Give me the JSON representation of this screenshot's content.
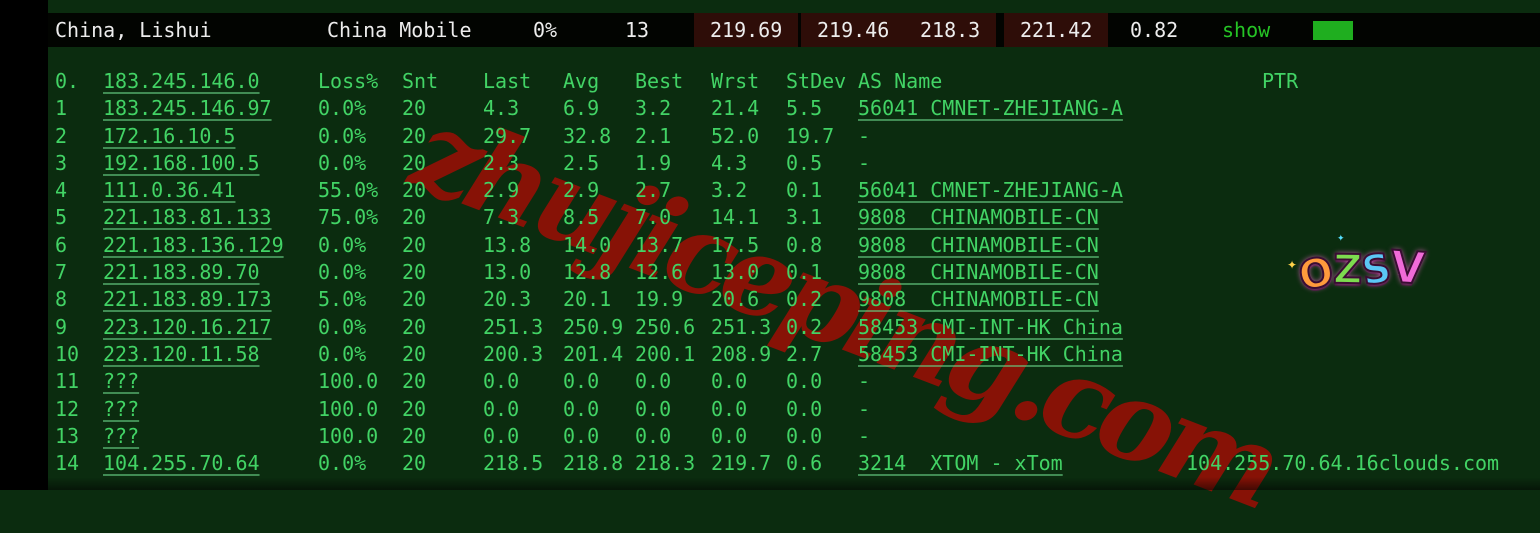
{
  "colors": {
    "background": "#0b2c0f",
    "gutter_black": "#000000",
    "bar_background": "#020401",
    "bar_text": "#ededed",
    "hot_cell_background": "#2e0d08",
    "text_green": "#42d365",
    "show_green": "#25c425",
    "button_green": "#1fae1f",
    "watermark_red": "#8e1407"
  },
  "summary_bar": {
    "location": "China, Lishui",
    "provider": "China Mobile",
    "loss": "0%",
    "count": "13",
    "values": [
      "219.69",
      "219.46",
      "218.3",
      "221.42",
      "0.82"
    ],
    "show_label": "show"
  },
  "table": {
    "header": {
      "hop": "0.",
      "ip": "183.245.146.0",
      "loss": "Loss%",
      "snt": "Snt",
      "last": "Last",
      "avg": "Avg",
      "best": "Best",
      "wrst": "Wrst",
      "stdev": "StDev",
      "asname": "AS Name",
      "ptr": "PTR"
    },
    "rows": [
      {
        "hop": "1",
        "ip": "183.245.146.97",
        "loss": "0.0%",
        "snt": "20",
        "last": "4.3",
        "avg": "6.9",
        "best": "3.2",
        "wrst": "21.4",
        "stdev": "5.5",
        "asname": "56041 CMNET-ZHEJIANG-A",
        "ptr": ""
      },
      {
        "hop": "2",
        "ip": "172.16.10.5",
        "loss": "0.0%",
        "snt": "20",
        "last": "29.7",
        "avg": "32.8",
        "best": "2.1",
        "wrst": "52.0",
        "stdev": "19.7",
        "asname": "-",
        "ptr": ""
      },
      {
        "hop": "3",
        "ip": "192.168.100.5",
        "loss": "0.0%",
        "snt": "20",
        "last": "2.3",
        "avg": "2.5",
        "best": "1.9",
        "wrst": "4.3",
        "stdev": "0.5",
        "asname": "-",
        "ptr": ""
      },
      {
        "hop": "4",
        "ip": "111.0.36.41",
        "loss": "55.0%",
        "snt": "20",
        "last": "2.9",
        "avg": "2.9",
        "best": "2.7",
        "wrst": "3.2",
        "stdev": "0.1",
        "asname": "56041 CMNET-ZHEJIANG-A",
        "ptr": ""
      },
      {
        "hop": "5",
        "ip": "221.183.81.133",
        "loss": "75.0%",
        "snt": "20",
        "last": "7.3",
        "avg": "8.5",
        "best": "7.0",
        "wrst": "14.1",
        "stdev": "3.1",
        "asname": "9808  CHINAMOBILE-CN",
        "ptr": ""
      },
      {
        "hop": "6",
        "ip": "221.183.136.129",
        "loss": "0.0%",
        "snt": "20",
        "last": "13.8",
        "avg": "14.0",
        "best": "13.7",
        "wrst": "17.5",
        "stdev": "0.8",
        "asname": "9808  CHINAMOBILE-CN",
        "ptr": ""
      },
      {
        "hop": "7",
        "ip": "221.183.89.70",
        "loss": "0.0%",
        "snt": "20",
        "last": "13.0",
        "avg": "12.8",
        "best": "12.6",
        "wrst": "13.0",
        "stdev": "0.1",
        "asname": "9808  CHINAMOBILE-CN",
        "ptr": ""
      },
      {
        "hop": "8",
        "ip": "221.183.89.173",
        "loss": "5.0%",
        "snt": "20",
        "last": "20.3",
        "avg": "20.1",
        "best": "19.9",
        "wrst": "20.6",
        "stdev": "0.2",
        "asname": "9808  CHINAMOBILE-CN",
        "ptr": ""
      },
      {
        "hop": "9",
        "ip": "223.120.16.217",
        "loss": "0.0%",
        "snt": "20",
        "last": "251.3",
        "avg": "250.9",
        "best": "250.6",
        "wrst": "251.3",
        "stdev": "0.2",
        "asname": "58453 CMI-INT-HK China",
        "ptr": ""
      },
      {
        "hop": "10",
        "ip": "223.120.11.58",
        "loss": "0.0%",
        "snt": "20",
        "last": "200.3",
        "avg": "201.4",
        "best": "200.1",
        "wrst": "208.9",
        "stdev": "2.7",
        "asname": "58453 CMI-INT-HK China",
        "ptr": ""
      },
      {
        "hop": "11",
        "ip": "???",
        "loss": "100.0",
        "snt": "20",
        "last": "0.0",
        "avg": "0.0",
        "best": "0.0",
        "wrst": "0.0",
        "stdev": "0.0",
        "asname": "-",
        "ptr": ""
      },
      {
        "hop": "12",
        "ip": "???",
        "loss": "100.0",
        "snt": "20",
        "last": "0.0",
        "avg": "0.0",
        "best": "0.0",
        "wrst": "0.0",
        "stdev": "0.0",
        "asname": "-",
        "ptr": ""
      },
      {
        "hop": "13",
        "ip": "???",
        "loss": "100.0",
        "snt": "20",
        "last": "0.0",
        "avg": "0.0",
        "best": "0.0",
        "wrst": "0.0",
        "stdev": "0.0",
        "asname": "-",
        "ptr": ""
      },
      {
        "hop": "14",
        "ip": "104.255.70.64",
        "loss": "0.0%",
        "snt": "20",
        "last": "218.5",
        "avg": "218.8",
        "best": "218.3",
        "wrst": "219.7",
        "stdev": "0.6",
        "asname": "3214  XTOM - xTom",
        "ptr": "104.255.70.64.16clouds.com"
      }
    ]
  },
  "watermark": {
    "text": "zhujiceping.com"
  },
  "logo": {
    "letters": [
      "O",
      "Z",
      "S",
      "V"
    ],
    "sparkle_left": "✦",
    "sparkle_right": "✦",
    "sparkle_top": "✦"
  }
}
